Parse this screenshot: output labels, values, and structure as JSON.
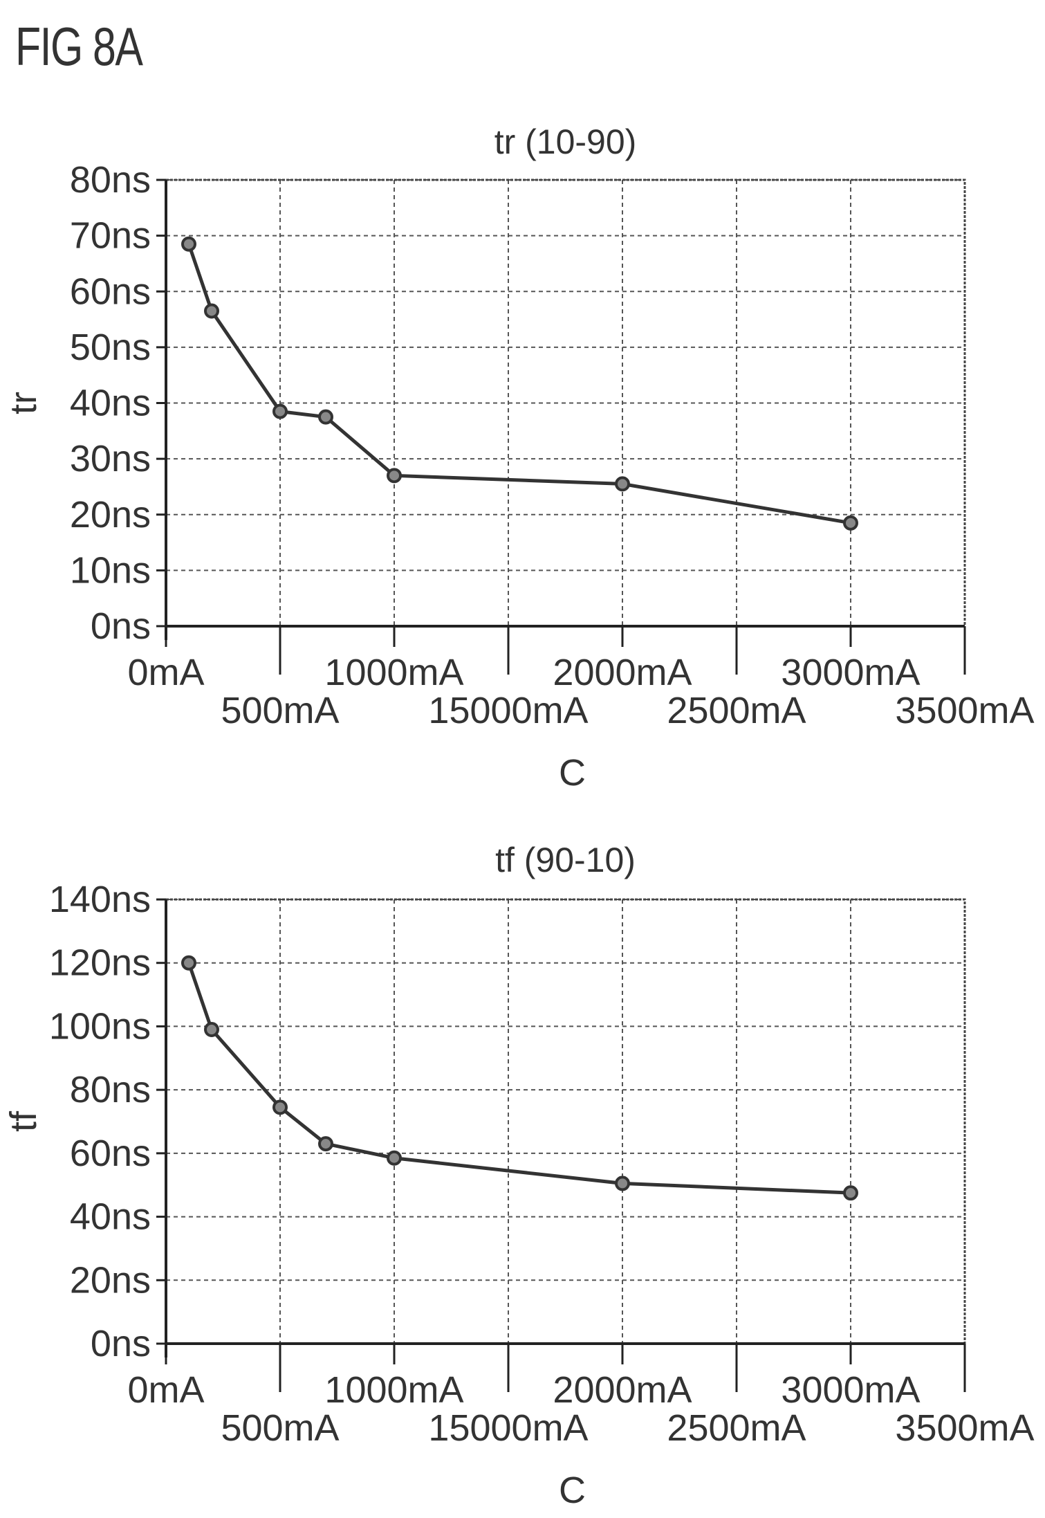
{
  "figure_label": "FIG 8A",
  "chart_data": [
    {
      "type": "line",
      "title": "tr (10-90)",
      "xlabel": "C",
      "ylabel": "tr",
      "x_tick_labels_row1": [
        "0mA",
        "1000mA",
        "2000mA",
        "3000mA"
      ],
      "x_tick_labels_row2": [
        "500mA",
        "15000mA",
        "2500mA",
        "3500mA"
      ],
      "y_tick_labels": [
        "0ns",
        "10ns",
        "20ns",
        "30ns",
        "40ns",
        "50ns",
        "60ns",
        "70ns",
        "80ns"
      ],
      "xlim": [
        0,
        3500
      ],
      "ylim": [
        0,
        80
      ],
      "grid": true,
      "series": [
        {
          "x": [
            100,
            200,
            500,
            700,
            1000,
            2000,
            3000
          ],
          "y": [
            68.5,
            56.5,
            38.5,
            37.5,
            27,
            25.5,
            18.5
          ],
          "color": "#333333",
          "marker": "circle"
        }
      ]
    },
    {
      "type": "line",
      "title": "tf (90-10)",
      "xlabel": "C",
      "ylabel": "tf",
      "x_tick_labels_row1": [
        "0mA",
        "1000mA",
        "2000mA",
        "3000mA"
      ],
      "x_tick_labels_row2": [
        "500mA",
        "15000mA",
        "2500mA",
        "3500mA"
      ],
      "y_tick_labels": [
        "0ns",
        "20ns",
        "40ns",
        "60ns",
        "80ns",
        "100ns",
        "120ns",
        "140ns"
      ],
      "xlim": [
        0,
        3500
      ],
      "ylim": [
        0,
        140
      ],
      "grid": true,
      "series": [
        {
          "x": [
            100,
            200,
            500,
            700,
            1000,
            2000,
            3000
          ],
          "y": [
            120,
            99,
            74.5,
            63,
            58.5,
            50.5,
            47.5
          ],
          "color": "#333333",
          "marker": "circle"
        }
      ]
    }
  ]
}
